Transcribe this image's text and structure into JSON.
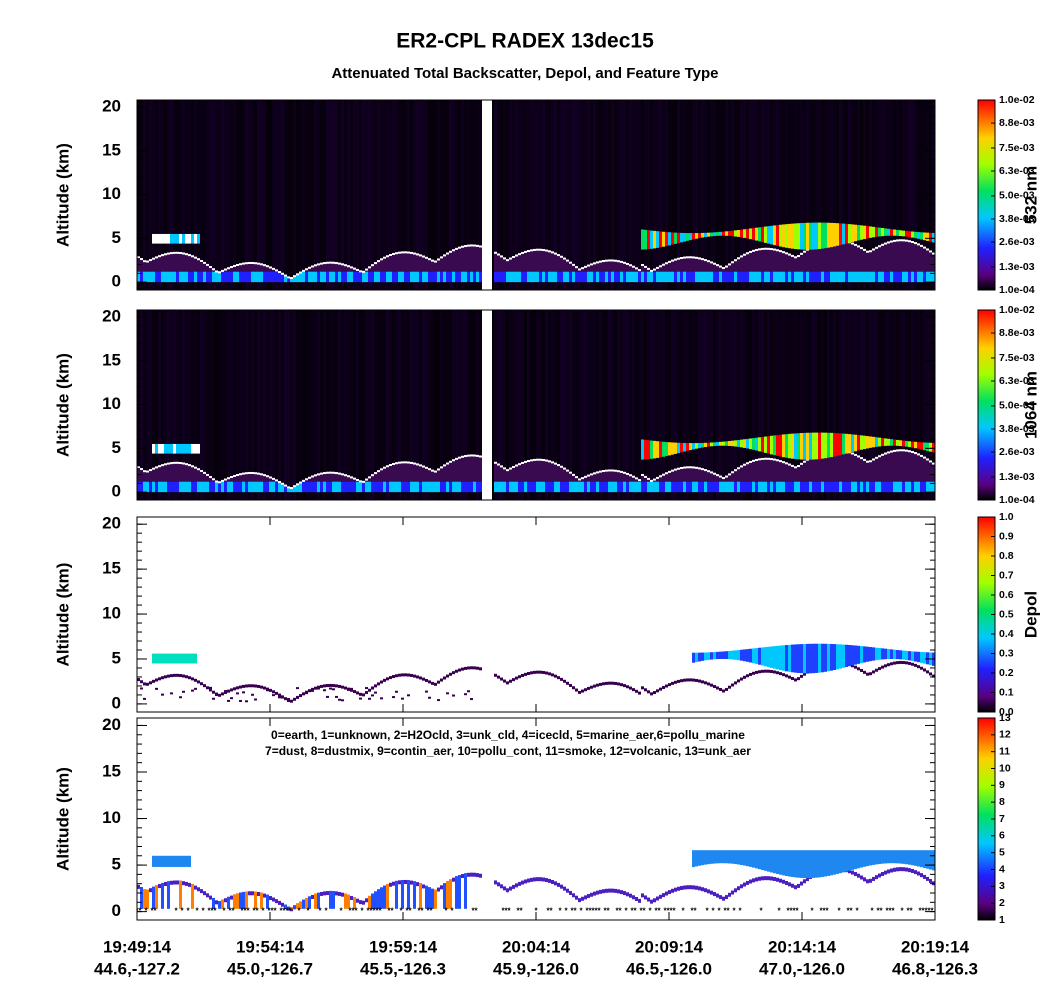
{
  "title": "ER2-CPL RADEX 13dec15",
  "subtitle": "Attenuated Total Backscatter, Depol, and Feature Type",
  "xticks": [
    {
      "time": "19:49:14",
      "latlon": "44.6,-127.2"
    },
    {
      "time": "19:54:14",
      "latlon": "45.0,-126.7"
    },
    {
      "time": "19:59:14",
      "latlon": "45.5,-126.3"
    },
    {
      "time": "20:04:14",
      "latlon": "45.9,-126.0"
    },
    {
      "time": "20:09:14",
      "latlon": "46.5,-126.0"
    },
    {
      "time": "20:14:14",
      "latlon": "47.0,-126.0"
    },
    {
      "time": "20:19:14",
      "latlon": "46.8,-126.3"
    }
  ],
  "chart_data": [
    {
      "type": "backscatter",
      "background": "#000000",
      "ylabel": "Altitude (km)",
      "ylim": [
        -0.9,
        20.8
      ],
      "yticks": [
        0,
        5,
        10,
        15,
        20
      ],
      "cbar_label": "532 nm",
      "cbar_lim": [
        0.0001,
        0.01
      ],
      "cbar_ticks": [
        {
          "value": 0.0001,
          "label": "1.0e-04"
        },
        {
          "value": 0.0013,
          "label": "1.3e-03"
        },
        {
          "value": 0.0026,
          "label": "2.6e-03"
        },
        {
          "value": 0.0038,
          "label": "3.8e-03"
        },
        {
          "value": 0.005,
          "label": "5.0e-03"
        },
        {
          "value": 0.0063,
          "label": "6.3e-03"
        },
        {
          "value": 0.0075,
          "label": "7.5e-03"
        },
        {
          "value": 0.0088,
          "label": "8.8e-03"
        },
        {
          "value": 0.01,
          "label": "1.0e-02"
        }
      ]
    },
    {
      "type": "backscatter",
      "background": "#000000",
      "ylabel": "Altitude (km)",
      "ylim": [
        -0.9,
        20.8
      ],
      "yticks": [
        0,
        5,
        10,
        15,
        20
      ],
      "cbar_label": "1064 nm",
      "cbar_lim": [
        0.0001,
        0.01
      ],
      "cbar_ticks": [
        {
          "value": 0.0001,
          "label": "1.0e-04"
        },
        {
          "value": 0.0013,
          "label": "1.3e-03"
        },
        {
          "value": 0.0026,
          "label": "2.6e-03"
        },
        {
          "value": 0.0038,
          "label": "3.8e-03"
        },
        {
          "value": 0.005,
          "label": "5.0e-03"
        },
        {
          "value": 0.0063,
          "label": "6.3e-03"
        },
        {
          "value": 0.0075,
          "label": "7.5e-03"
        },
        {
          "value": 0.0088,
          "label": "8.8e-03"
        },
        {
          "value": 0.01,
          "label": "1.0e-02"
        }
      ]
    },
    {
      "type": "depol",
      "background": "#ffffff",
      "ylabel": "Altitude (km)",
      "ylim": [
        -0.9,
        20.8
      ],
      "yticks": [
        0,
        5,
        10,
        15,
        20
      ],
      "cbar_label": "Depol",
      "cbar_lim": [
        0,
        1
      ],
      "cbar_ticks": [
        {
          "value": 0,
          "label": "0.0"
        },
        0.1,
        0.2,
        0.3,
        0.4,
        0.5,
        0.6,
        0.7,
        0.8,
        0.9,
        {
          "value": 1,
          "label": "1.0"
        }
      ]
    },
    {
      "type": "feature",
      "background": "#ffffff",
      "ylabel": "Altitude (km)",
      "ylim": [
        -0.9,
        20.8
      ],
      "yticks": [
        0,
        5,
        10,
        15,
        20
      ],
      "cbar_lim": [
        1,
        13
      ],
      "cbar_ticks": [
        1,
        2,
        3,
        4,
        5,
        6,
        7,
        8,
        9,
        10,
        11,
        12,
        13
      ],
      "legend_lines": [
        "0=earth, 1=unknown, 2=H2Ocld, 3=unk_cld, 4=icecld, 5=marine_aer,6=pollu_marine",
        "7=dust, 8=dustmix, 9=contin_aer, 10=pollu_cont, 11=smoke, 12=volcanic, 13=unk_aer"
      ]
    }
  ]
}
